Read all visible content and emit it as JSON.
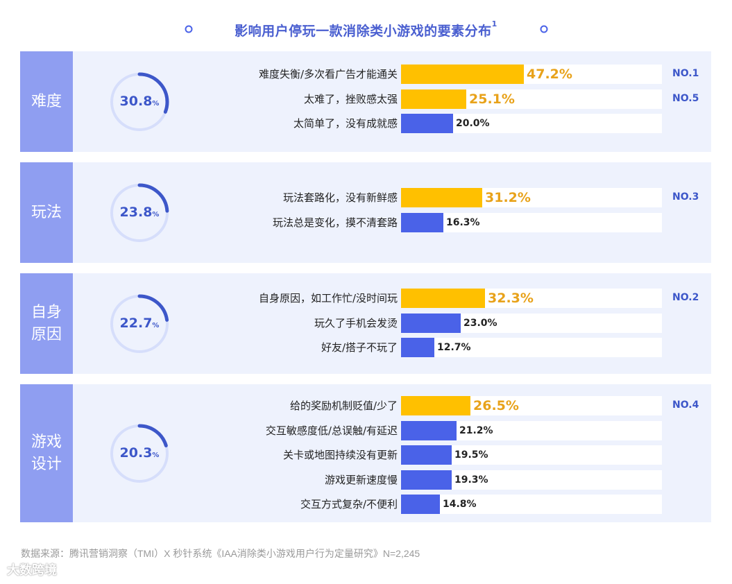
{
  "title": {
    "text": "影响用户停玩一款消除类小游戏的要素分布",
    "sup": "1"
  },
  "footer": {
    "source": "数据来源：腾讯营销洞察（TMI）X 秒针系统《IAA消除类小游戏用户行为定量研究》N=2,245"
  },
  "watermark": {
    "text": "大数跨境"
  },
  "colors": {
    "accent": "#4A62E8",
    "highlight": "#FFC000",
    "highlight_text": "#E8A21A",
    "panel": "#EEF2FD",
    "label_bg": "#8F9EF1"
  },
  "chart_data": {
    "type": "bar",
    "orientation": "horizontal",
    "xlim": [
      0,
      100
    ],
    "groups": [
      {
        "name": "难度",
        "name_lines": [
          "难度"
        ],
        "share": 30.8,
        "share_label": "30.8",
        "share_unit": "%",
        "rank": "NO.1",
        "rank2": "NO.5",
        "items": [
          {
            "label": "难度失衡/多次看广告才能通关",
            "value": 47.2,
            "value_label": "47.2%",
            "highlight": true
          },
          {
            "label": "太难了，挫败感太强",
            "value": 25.1,
            "value_label": "25.1%",
            "highlight": true
          },
          {
            "label": "太简单了，没有成就感",
            "value": 20.0,
            "value_label": "20.0%",
            "highlight": false
          }
        ]
      },
      {
        "name": "玩法",
        "name_lines": [
          "玩法"
        ],
        "share": 23.8,
        "share_label": "23.8",
        "share_unit": "%",
        "rank": "NO.3",
        "items": [
          {
            "label": "玩法套路化，没有新鲜感",
            "value": 31.2,
            "value_label": "31.2%",
            "highlight": true
          },
          {
            "label": "玩法总是变化，摸不清套路",
            "value": 16.3,
            "value_label": "16.3%",
            "highlight": false
          }
        ]
      },
      {
        "name": "自身原因",
        "name_lines": [
          "自身",
          "原因"
        ],
        "share": 22.7,
        "share_label": "22.7",
        "share_unit": "%",
        "rank": "NO.2",
        "items": [
          {
            "label": "自身原因，如工作忙/没时间玩",
            "value": 32.3,
            "value_label": "32.3%",
            "highlight": true
          },
          {
            "label": "玩久了手机会发烫",
            "value": 23.0,
            "value_label": "23.0%",
            "highlight": false
          },
          {
            "label": "好友/搭子不玩了",
            "value": 12.7,
            "value_label": "12.7%",
            "highlight": false
          }
        ]
      },
      {
        "name": "游戏设计",
        "name_lines": [
          "游戏",
          "设计"
        ],
        "share": 20.3,
        "share_label": "20.3",
        "share_unit": "%",
        "rank": "NO.4",
        "items": [
          {
            "label": "给的奖励机制贬值/少了",
            "value": 26.5,
            "value_label": "26.5%",
            "highlight": true
          },
          {
            "label": "交互敏感度低/总误触/有延迟",
            "value": 21.2,
            "value_label": "21.2%",
            "highlight": false
          },
          {
            "label": "关卡或地图持续没有更新",
            "value": 19.5,
            "value_label": "19.5%",
            "highlight": false
          },
          {
            "label": "游戏更新速度慢",
            "value": 19.3,
            "value_label": "19.3%",
            "highlight": false
          },
          {
            "label": "交互方式复杂/不便利",
            "value": 14.8,
            "value_label": "14.8%",
            "highlight": false
          }
        ]
      }
    ]
  }
}
